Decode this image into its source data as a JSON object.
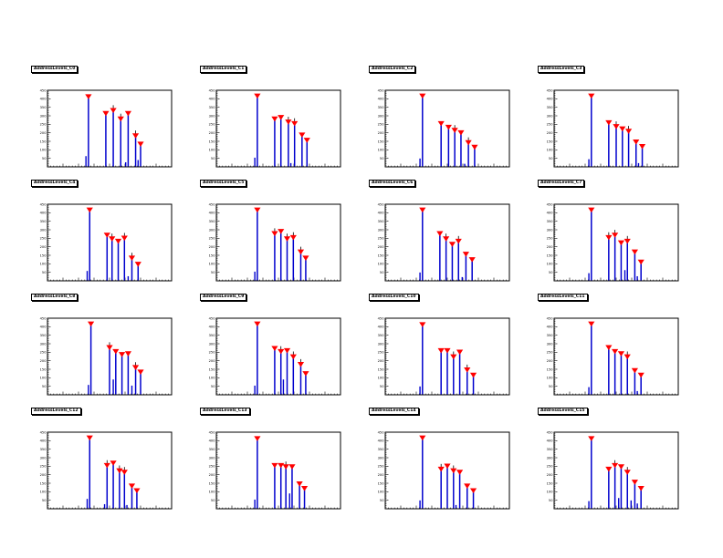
{
  "canvas": {
    "background": "#ffffff"
  },
  "colors": {
    "spike": "#0000cd",
    "marker": "#ff0000",
    "error_bar": "#000000",
    "frame_border": "#000000",
    "tick_text": "#000000"
  },
  "axes": {
    "xlim": [
      -2000,
      2000
    ],
    "ylim": [
      0,
      450
    ],
    "x_tick_labels": [
      "-2000",
      "-1500",
      "-1000",
      "-500",
      "0",
      "500",
      "1000",
      "1500",
      "2000"
    ],
    "y_tick_labels": [
      "50",
      "100",
      "150",
      "200",
      "250",
      "300",
      "350",
      "400",
      "450"
    ],
    "x_major_step": 500,
    "x_minor_step": 100,
    "y_major_step": 50,
    "y_minor_step": 10,
    "grid": false
  },
  "chart_data": [
    {
      "type": "spike",
      "title": "AddressLevels_C0",
      "points": [
        [
          -680,
          414,
          0
        ],
        [
          -120,
          315,
          0
        ],
        [
          120,
          333,
          1
        ],
        [
          360,
          283,
          1
        ],
        [
          600,
          315,
          0
        ],
        [
          840,
          184,
          1
        ],
        [
          1000,
          135,
          0
        ]
      ],
      "stubs": [
        [
          -760,
          63
        ],
        [
          520,
          27
        ],
        [
          920,
          40
        ]
      ]
    },
    {
      "type": "spike",
      "title": "AddressLevels_C1",
      "points": [
        [
          -680,
          418,
          0
        ],
        [
          -120,
          283,
          0
        ],
        [
          80,
          292,
          0
        ],
        [
          320,
          265,
          1
        ],
        [
          520,
          256,
          1
        ],
        [
          760,
          189,
          0
        ],
        [
          920,
          158,
          0
        ]
      ],
      "stubs": [
        [
          -760,
          54
        ],
        [
          400,
          22
        ]
      ]
    },
    {
      "type": "spike",
      "title": "AddressLevels_C2",
      "points": [
        [
          -800,
          418,
          0
        ],
        [
          -200,
          256,
          0
        ],
        [
          40,
          234,
          0
        ],
        [
          240,
          216,
          1
        ],
        [
          440,
          202,
          0
        ],
        [
          680,
          144,
          1
        ],
        [
          880,
          117,
          0
        ]
      ],
      "stubs": [
        [
          -880,
          49
        ],
        [
          560,
          18
        ]
      ]
    },
    {
      "type": "spike",
      "title": "AddressLevels_C3",
      "points": [
        [
          -800,
          418,
          0
        ],
        [
          -240,
          261,
          0
        ],
        [
          0,
          238,
          1
        ],
        [
          200,
          225,
          0
        ],
        [
          400,
          211,
          1
        ],
        [
          640,
          148,
          0
        ],
        [
          840,
          121,
          0
        ]
      ],
      "stubs": [
        [
          -880,
          45
        ],
        [
          720,
          22
        ]
      ]
    },
    {
      "type": "spike",
      "title": "AddressLevels_C4",
      "points": [
        [
          -640,
          418,
          0
        ],
        [
          -80,
          270,
          0
        ],
        [
          80,
          248,
          1
        ],
        [
          280,
          234,
          0
        ],
        [
          480,
          252,
          1
        ],
        [
          720,
          135,
          1
        ],
        [
          920,
          99,
          0
        ]
      ],
      "stubs": [
        [
          -720,
          58
        ],
        [
          600,
          27
        ]
      ]
    },
    {
      "type": "spike",
      "title": "AddressLevels_C5",
      "points": [
        [
          -680,
          418,
          0
        ],
        [
          -120,
          279,
          1
        ],
        [
          80,
          292,
          0
        ],
        [
          280,
          248,
          1
        ],
        [
          480,
          256,
          1
        ],
        [
          720,
          171,
          1
        ],
        [
          880,
          135,
          0
        ]
      ],
      "stubs": [
        [
          -760,
          54
        ]
      ]
    },
    {
      "type": "spike",
      "title": "AddressLevels_C6",
      "points": [
        [
          -800,
          418,
          0
        ],
        [
          -240,
          279,
          0
        ],
        [
          -40,
          248,
          1
        ],
        [
          160,
          216,
          0
        ],
        [
          360,
          234,
          1
        ],
        [
          600,
          158,
          0
        ],
        [
          800,
          126,
          0
        ]
      ],
      "stubs": [
        [
          -880,
          49
        ],
        [
          480,
          22
        ]
      ]
    },
    {
      "type": "spike",
      "title": "AddressLevels_C7",
      "points": [
        [
          -800,
          418,
          0
        ],
        [
          -240,
          256,
          1
        ],
        [
          -40,
          270,
          1
        ],
        [
          160,
          225,
          0
        ],
        [
          360,
          234,
          1
        ],
        [
          600,
          171,
          0
        ],
        [
          800,
          112,
          0
        ]
      ],
      "stubs": [
        [
          -880,
          45
        ],
        [
          280,
          63
        ],
        [
          680,
          27
        ]
      ]
    },
    {
      "type": "spike",
      "title": "AddressLevels_C8",
      "points": [
        [
          -600,
          418,
          0
        ],
        [
          0,
          279,
          1
        ],
        [
          200,
          256,
          0
        ],
        [
          400,
          238,
          0
        ],
        [
          600,
          243,
          0
        ],
        [
          840,
          162,
          1
        ],
        [
          1000,
          135,
          0
        ]
      ],
      "stubs": [
        [
          -680,
          58
        ],
        [
          120,
          90
        ],
        [
          720,
          54
        ]
      ]
    },
    {
      "type": "spike",
      "title": "AddressLevels_C9",
      "points": [
        [
          -680,
          418,
          0
        ],
        [
          -120,
          274,
          0
        ],
        [
          80,
          256,
          1
        ],
        [
          280,
          261,
          0
        ],
        [
          480,
          225,
          1
        ],
        [
          720,
          180,
          1
        ],
        [
          880,
          126,
          0
        ]
      ],
      "stubs": [
        [
          -760,
          54
        ],
        [
          160,
          90
        ]
      ]
    },
    {
      "type": "spike",
      "title": "AddressLevels_C10",
      "points": [
        [
          -800,
          414,
          0
        ],
        [
          -200,
          261,
          0
        ],
        [
          0,
          261,
          0
        ],
        [
          200,
          225,
          1
        ],
        [
          400,
          252,
          0
        ],
        [
          640,
          148,
          1
        ],
        [
          840,
          117,
          0
        ]
      ],
      "stubs": [
        [
          -880,
          49
        ]
      ]
    },
    {
      "type": "spike",
      "title": "AddressLevels_C11",
      "points": [
        [
          -800,
          418,
          0
        ],
        [
          -240,
          279,
          0
        ],
        [
          -40,
          256,
          0
        ],
        [
          160,
          243,
          0
        ],
        [
          360,
          225,
          1
        ],
        [
          600,
          144,
          0
        ],
        [
          800,
          117,
          0
        ]
      ],
      "stubs": [
        [
          -880,
          45
        ],
        [
          680,
          22
        ]
      ]
    },
    {
      "type": "spike",
      "title": "AddressLevels_C12",
      "points": [
        [
          -640,
          418,
          0
        ],
        [
          -80,
          256,
          1
        ],
        [
          120,
          270,
          0
        ],
        [
          320,
          225,
          1
        ],
        [
          480,
          216,
          1
        ],
        [
          720,
          135,
          0
        ],
        [
          880,
          108,
          0
        ]
      ],
      "stubs": [
        [
          -720,
          58
        ],
        [
          -160,
          27
        ],
        [
          560,
          22
        ]
      ]
    },
    {
      "type": "spike",
      "title": "AddressLevels_C13",
      "points": [
        [
          -680,
          414,
          0
        ],
        [
          -120,
          256,
          0
        ],
        [
          80,
          256,
          0
        ],
        [
          240,
          248,
          1
        ],
        [
          440,
          248,
          0
        ],
        [
          680,
          148,
          0
        ],
        [
          840,
          121,
          0
        ]
      ],
      "stubs": [
        [
          -760,
          54
        ],
        [
          360,
          90
        ]
      ]
    },
    {
      "type": "spike",
      "title": "AddressLevels_C14",
      "points": [
        [
          -800,
          418,
          0
        ],
        [
          -200,
          234,
          1
        ],
        [
          0,
          252,
          0
        ],
        [
          200,
          225,
          1
        ],
        [
          400,
          216,
          0
        ],
        [
          640,
          135,
          0
        ],
        [
          840,
          108,
          0
        ]
      ],
      "stubs": [
        [
          -880,
          49
        ],
        [
          280,
          22
        ]
      ]
    },
    {
      "type": "spike",
      "title": "AddressLevels_C15",
      "points": [
        [
          -800,
          414,
          0
        ],
        [
          -240,
          234,
          0
        ],
        [
          -40,
          256,
          1
        ],
        [
          160,
          248,
          0
        ],
        [
          360,
          216,
          1
        ],
        [
          600,
          158,
          0
        ],
        [
          800,
          121,
          0
        ]
      ],
      "stubs": [
        [
          -880,
          45
        ],
        [
          80,
          63
        ],
        [
          480,
          49
        ],
        [
          680,
          31
        ]
      ]
    }
  ]
}
